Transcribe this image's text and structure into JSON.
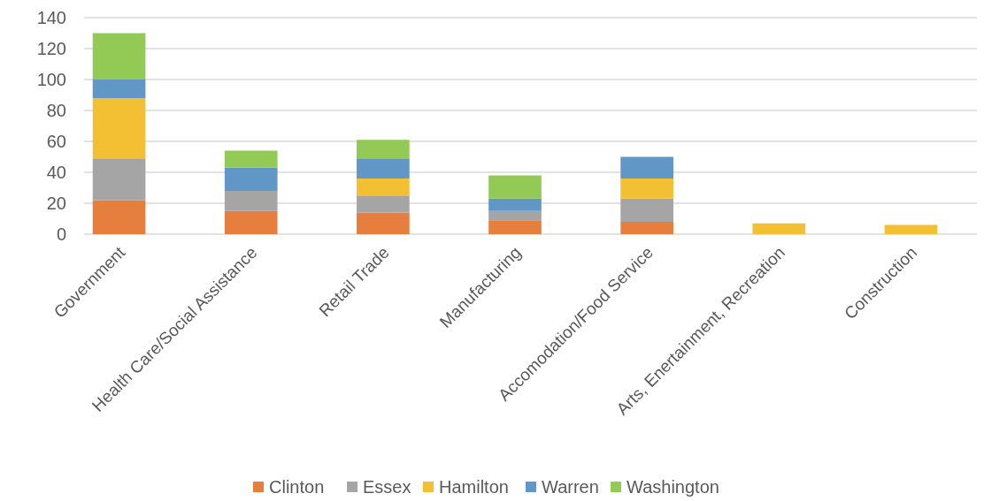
{
  "chart_data": {
    "type": "bar",
    "stacked": true,
    "categories": [
      "Government",
      "Health Care/Social Assistance",
      "Retail Trade",
      "Manufacturing",
      "Accomodation/Food Service",
      "Arts, Enertainment, Recreation",
      "Construction"
    ],
    "series": [
      {
        "name": "Clinton",
        "color": "#e67f3e",
        "values": [
          22,
          15,
          14,
          9,
          8,
          null,
          null
        ]
      },
      {
        "name": "Essex",
        "color": "#a5a5a5",
        "values": [
          27,
          13,
          11,
          6,
          15,
          null,
          null
        ]
      },
      {
        "name": "Hamilton",
        "color": "#f3bf33",
        "values": [
          39,
          null,
          11,
          null,
          13,
          7,
          6
        ]
      },
      {
        "name": "Warren",
        "color": "#6097c7",
        "values": [
          12,
          15,
          13,
          8,
          14,
          null,
          null
        ]
      },
      {
        "name": "Washington",
        "color": "#93c955",
        "values": [
          30,
          11,
          12,
          15,
          null,
          null,
          null
        ]
      }
    ],
    "ylim": [
      0,
      140
    ],
    "yticks": [
      0,
      20,
      40,
      60,
      80,
      100,
      120,
      140
    ],
    "grid": "y",
    "legend": "bottom"
  }
}
